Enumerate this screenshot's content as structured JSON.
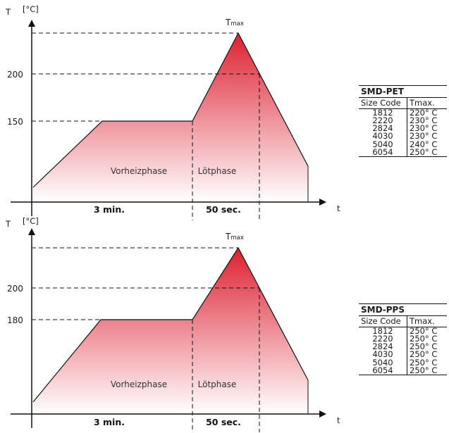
{
  "chart_data": [
    {
      "type": "line",
      "title": "",
      "ylabel": "T [°C]",
      "xlabel": "t",
      "yticks": [
        200,
        150
      ],
      "tmax_label": "Tmax",
      "profile_y": [
        40,
        150,
        150,
        245,
        70
      ],
      "profile_x": [
        0,
        3,
        3.8,
        4.4,
        5.4
      ],
      "t200_x": 4.84,
      "ylim": [
        10,
        270
      ],
      "xlim": [
        0,
        5.6
      ],
      "phases": [
        {
          "label": "Vorheizphase",
          "duration": "3 min."
        },
        {
          "label": "Lötphase",
          "duration": "50 sec."
        }
      ]
    },
    {
      "type": "line",
      "title": "",
      "ylabel": "T [°C]",
      "xlabel": "t",
      "yticks": [
        200,
        180
      ],
      "tmax_label": "Tmax",
      "profile_y": [
        40,
        180,
        180,
        262,
        70
      ],
      "profile_x": [
        0,
        3,
        3.8,
        4.4,
        5.4
      ],
      "t200_x": 4.84,
      "ylim": [
        10,
        280
      ],
      "xlim": [
        0,
        5.6
      ],
      "phases": [
        {
          "label": "Vorheizphase",
          "duration": "3 min."
        },
        {
          "label": "Lötphase",
          "duration": "50 sec."
        }
      ]
    }
  ],
  "tables": [
    {
      "title": "SMD-PET",
      "col1": "Size Code",
      "col2_main": "T",
      "col2_sub": "max.",
      "rows": [
        [
          "1812",
          "220° C"
        ],
        [
          "2220",
          "230° C"
        ],
        [
          "2824",
          "230° C"
        ],
        [
          "4030",
          "230° C"
        ],
        [
          "5040",
          "240° C"
        ],
        [
          "6054",
          "250° C"
        ]
      ]
    },
    {
      "title": "SMD-PPS",
      "col1": "Size Code",
      "col2_main": "T",
      "col2_sub": "max.",
      "rows": [
        [
          "1812",
          "250° C"
        ],
        [
          "2220",
          "250° C"
        ],
        [
          "2824",
          "250° C"
        ],
        [
          "4030",
          "250° C"
        ],
        [
          "5040",
          "250° C"
        ],
        [
          "6054",
          "250° C"
        ]
      ]
    }
  ],
  "colors": {
    "fill_top": "#dd2030",
    "fill_bottom": "#ffffff",
    "line": "#111111"
  }
}
